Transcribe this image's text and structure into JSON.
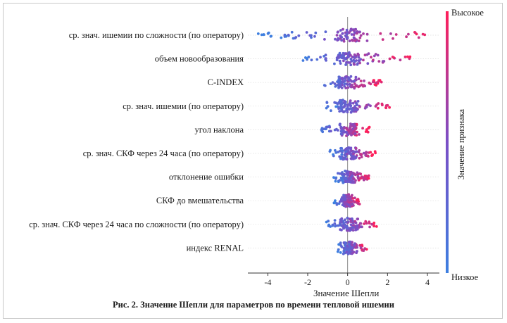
{
  "chart_data": {
    "type": "scatter",
    "subtype": "beeswarm",
    "features": [
      "ср. знач. ишемии по сложности (по оператору)",
      "объем новообразования",
      "C-INDEX",
      "ср. знач. ишемии (по оператору)",
      "угол наклона",
      "ср. знач. СКФ через 24 часа (по оператору)",
      "отклонение ошибки",
      "СКФ до вмешательства",
      "ср. знач. СКФ через 24 часа по сложности (по оператору)",
      "индекс RENAL"
    ],
    "feature_spread": [
      {
        "min": -4.5,
        "max": 4.0
      },
      {
        "min": -2.3,
        "max": 3.4
      },
      {
        "min": -1.3,
        "max": 1.7
      },
      {
        "min": -1.1,
        "max": 2.1
      },
      {
        "min": -1.5,
        "max": 1.1
      },
      {
        "min": -0.9,
        "max": 1.4
      },
      {
        "min": -0.7,
        "max": 1.1
      },
      {
        "min": -0.7,
        "max": 0.6
      },
      {
        "min": -1.1,
        "max": 1.5
      },
      {
        "min": -0.5,
        "max": 1.0
      }
    ],
    "xlabel": "Значение Шепли",
    "xlim": [
      -5.0,
      4.6
    ],
    "xticks": [
      "-4",
      "-2",
      "0",
      "2",
      "4"
    ],
    "xtick_values": [
      -4,
      -2,
      0,
      2,
      4
    ],
    "colorbar": {
      "title": "Значение признака",
      "high_label": "Высокое",
      "low_label": "Низкое",
      "high_color": "#ff0052",
      "low_color": "#008bfb"
    }
  },
  "caption": "Рис. 2. Значение Шепли для параметров по времени тепловой ишемии"
}
